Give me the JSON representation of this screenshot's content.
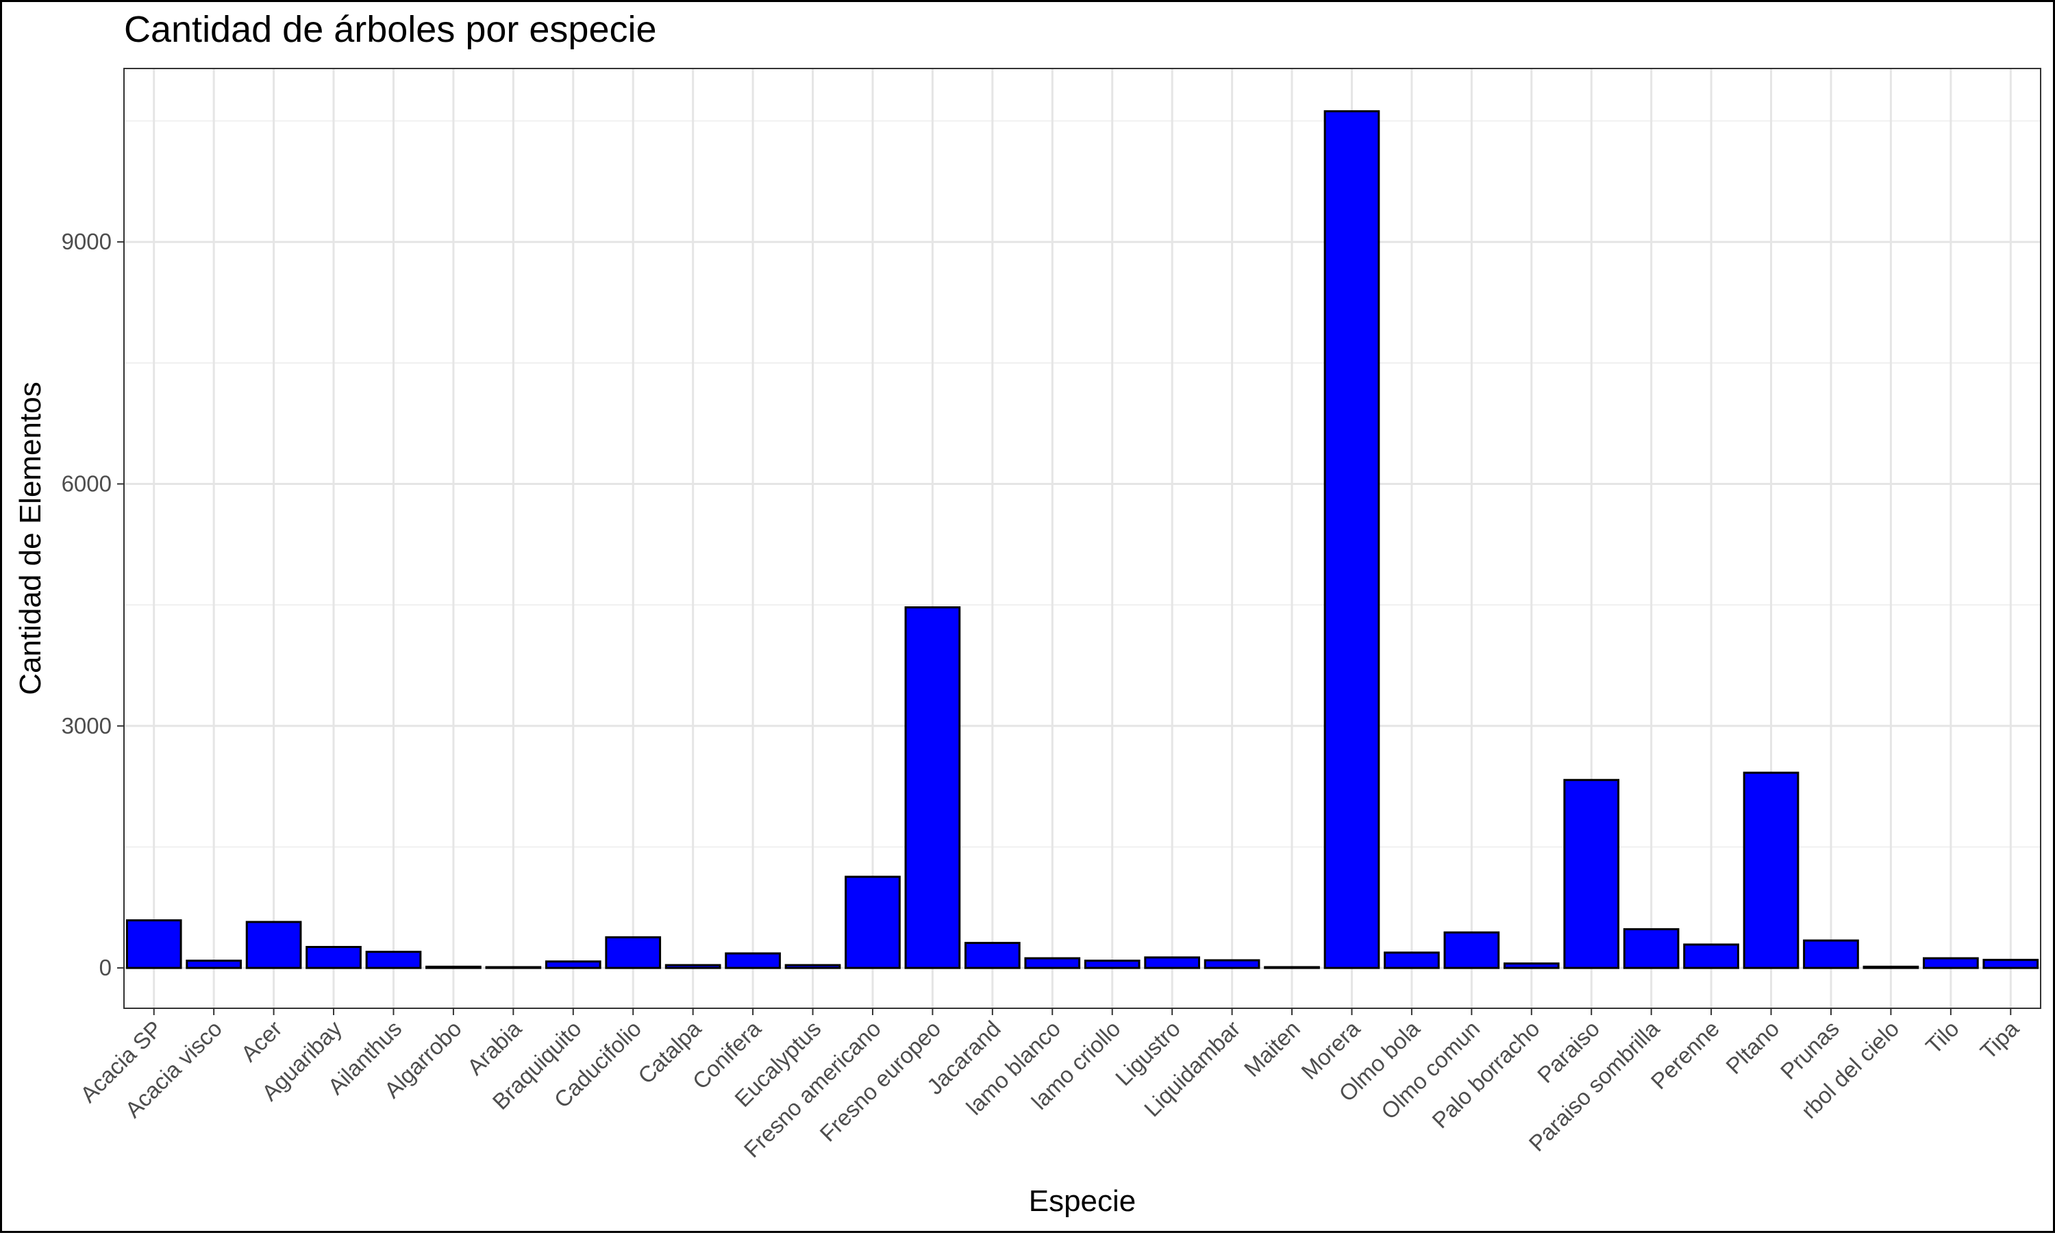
{
  "chart_data": {
    "type": "bar",
    "title": "Cantidad de árboles por especie",
    "xlabel": "Especie",
    "ylabel": "Cantidad de Elementos",
    "categories": [
      "Acacia SP",
      "Acacia visco",
      "Acer",
      "Aguaribay",
      "Ailanthus",
      "Algarrobo",
      "Arabia",
      "Braquiquito",
      "Caducifolio",
      "Catalpa",
      "Conifera",
      "Eucalyptus",
      "Fresno americano",
      "Fresno europeo",
      "Jacarand",
      "lamo blanco",
      "lamo criollo",
      "Ligustro",
      "Liquidambar",
      "Maiten",
      "Morera",
      "Olmo bola",
      "Olmo comun",
      "Palo borracho",
      "Paraiso",
      "Paraiso sombrilla",
      "Perenne",
      "Pltano",
      "Prunas",
      "rbol del cielo",
      "Tilo",
      "Tipa"
    ],
    "values": [
      590,
      90,
      570,
      260,
      200,
      15,
      10,
      80,
      380,
      35,
      180,
      35,
      1130,
      4470,
      310,
      120,
      90,
      130,
      95,
      10,
      10620,
      190,
      440,
      55,
      2330,
      480,
      290,
      2420,
      340,
      15,
      120,
      100
    ],
    "yticks": [
      0,
      3000,
      6000,
      9000
    ],
    "ylim": [
      -500,
      11150
    ],
    "grid": true,
    "legend": "none",
    "colors": {
      "bar_fill": "#0000ff",
      "bar_stroke": "#000000",
      "grid": "#e5e5e5",
      "tick_text": "#4d4d4d"
    }
  }
}
